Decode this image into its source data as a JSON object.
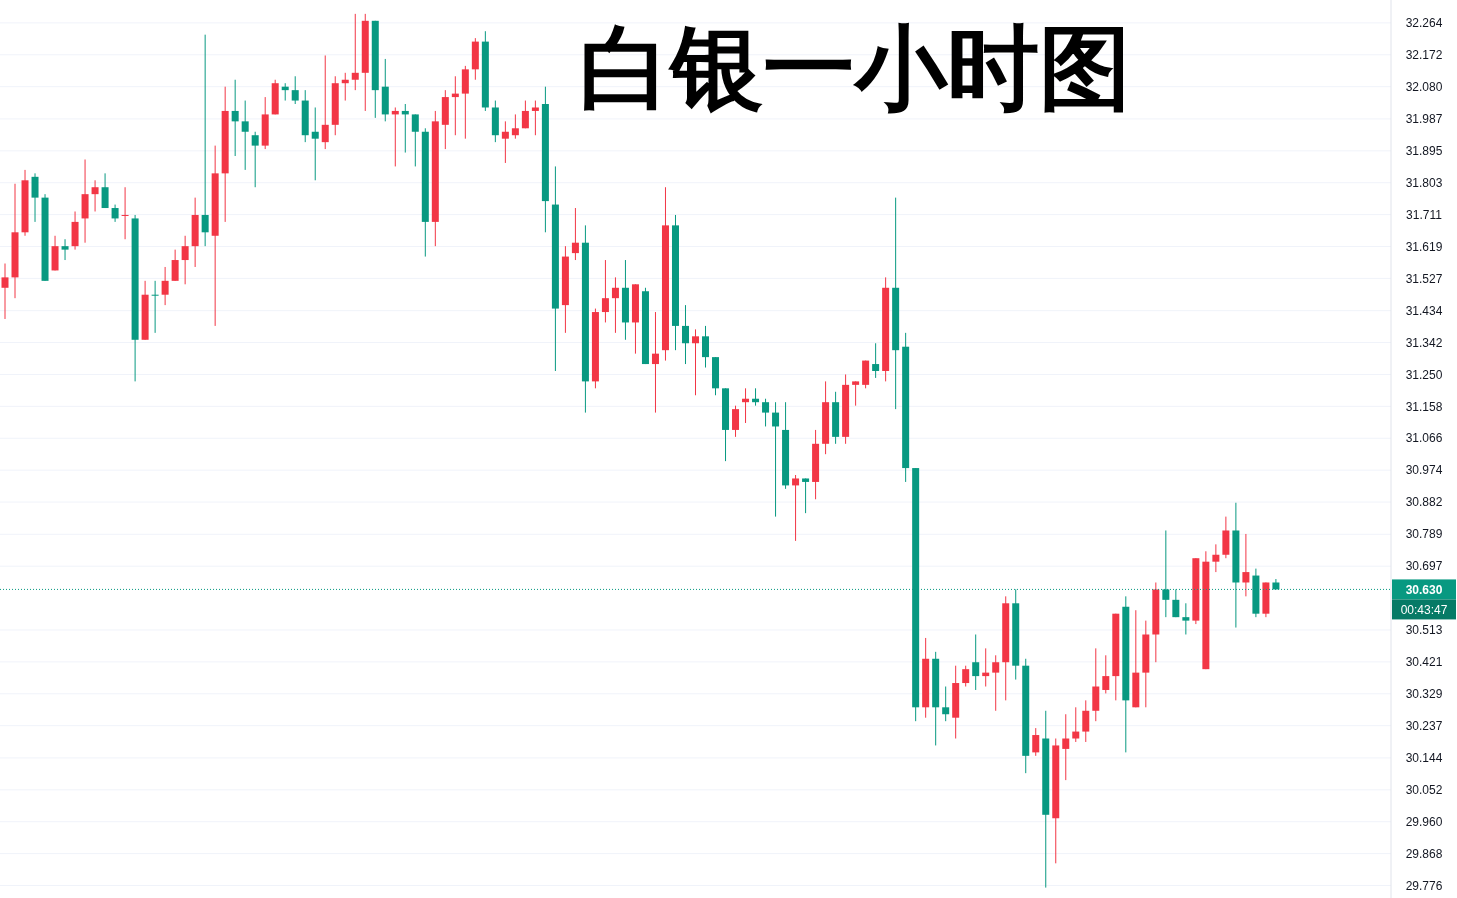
{
  "chart_data": {
    "type": "candlestick",
    "title": "白银一小时图",
    "categories": [
      null,
      null,
      null,
      null,
      null,
      null,
      null,
      null,
      null,
      null,
      null,
      null,
      null,
      null,
      null,
      null,
      null,
      null,
      null,
      null,
      null,
      null,
      null,
      null,
      null,
      null,
      null,
      null,
      null,
      null,
      null,
      null,
      null,
      null,
      null,
      null,
      null,
      null,
      null,
      null,
      null,
      null,
      null,
      null,
      null,
      null,
      null,
      null,
      null,
      null,
      null,
      null,
      null,
      null,
      null,
      null,
      null,
      null,
      null,
      null,
      null,
      null,
      null,
      null,
      null,
      null,
      null,
      null,
      null,
      null,
      null,
      null,
      null,
      null,
      null,
      null,
      null,
      null,
      null,
      null,
      null,
      null,
      null,
      null,
      null,
      null,
      null,
      null,
      null,
      null,
      null,
      null,
      null,
      null,
      null,
      null,
      null,
      null,
      null,
      null,
      null,
      null,
      null,
      null,
      null,
      null,
      null,
      null,
      null,
      null,
      null,
      null,
      null,
      null,
      null,
      null,
      null,
      null,
      null,
      null,
      null,
      null,
      null,
      null,
      null,
      null,
      null,
      null,
      null,
      null,
      null,
      null,
      null,
      null,
      null,
      null,
      null,
      null,
      null
    ],
    "ohlc": [
      [
        31.5,
        31.57,
        31.41,
        31.53
      ],
      [
        31.53,
        31.8,
        31.47,
        31.66
      ],
      [
        31.66,
        31.84,
        31.65,
        31.81
      ],
      [
        31.82,
        31.83,
        31.69,
        31.76
      ],
      [
        31.76,
        31.77,
        31.52,
        31.52
      ],
      [
        31.55,
        31.65,
        31.55,
        31.62
      ],
      [
        31.62,
        31.64,
        31.58,
        31.61
      ],
      [
        31.62,
        31.72,
        31.61,
        31.69
      ],
      [
        31.7,
        31.87,
        31.63,
        31.77
      ],
      [
        31.77,
        31.81,
        31.72,
        31.79
      ],
      [
        31.79,
        31.83,
        31.73,
        31.73
      ],
      [
        31.73,
        31.74,
        31.69,
        31.7
      ],
      [
        31.71,
        31.79,
        31.64,
        31.71
      ],
      [
        31.7,
        31.71,
        31.23,
        31.35
      ],
      [
        31.35,
        31.52,
        31.35,
        31.48
      ],
      [
        31.48,
        31.52,
        31.37,
        31.48
      ],
      [
        31.48,
        31.56,
        31.45,
        31.52
      ],
      [
        31.52,
        31.61,
        31.52,
        31.58
      ],
      [
        31.58,
        31.65,
        31.51,
        31.62
      ],
      [
        31.62,
        31.76,
        31.56,
        31.71
      ],
      [
        31.71,
        32.23,
        31.62,
        31.66
      ],
      [
        31.65,
        31.91,
        31.39,
        31.83
      ],
      [
        31.83,
        32.08,
        31.69,
        32.01
      ],
      [
        32.01,
        32.1,
        31.88,
        31.98
      ],
      [
        31.98,
        32.04,
        31.84,
        31.95
      ],
      [
        31.94,
        31.95,
        31.79,
        31.91
      ],
      [
        31.91,
        32.05,
        31.9,
        32.0
      ],
      [
        32.0,
        32.1,
        32.0,
        32.09
      ],
      [
        32.08,
        32.09,
        32.04,
        32.07
      ],
      [
        32.07,
        32.11,
        32.03,
        32.04
      ],
      [
        32.04,
        32.07,
        31.92,
        31.94
      ],
      [
        31.95,
        32.02,
        31.81,
        31.93
      ],
      [
        31.92,
        32.17,
        31.9,
        31.97
      ],
      [
        31.97,
        32.11,
        31.94,
        32.09
      ],
      [
        32.09,
        32.12,
        32.04,
        32.1
      ],
      [
        32.1,
        32.29,
        32.07,
        32.12
      ],
      [
        32.12,
        32.29,
        32.01,
        32.27
      ],
      [
        32.27,
        32.27,
        31.99,
        32.07
      ],
      [
        32.08,
        32.16,
        31.98,
        32.0
      ],
      [
        32.0,
        32.02,
        31.85,
        32.01
      ],
      [
        32.01,
        32.03,
        31.89,
        32.0
      ],
      [
        32.0,
        32.0,
        31.85,
        31.95
      ],
      [
        31.95,
        31.96,
        31.59,
        31.69
      ],
      [
        31.69,
        32.01,
        31.62,
        31.98
      ],
      [
        31.97,
        32.07,
        31.9,
        32.05
      ],
      [
        32.05,
        32.11,
        31.94,
        32.06
      ],
      [
        32.06,
        32.14,
        31.93,
        32.13
      ],
      [
        32.13,
        32.22,
        32.1,
        32.21
      ],
      [
        32.21,
        32.24,
        32.01,
        32.02
      ],
      [
        32.02,
        32.04,
        31.92,
        31.94
      ],
      [
        31.93,
        31.98,
        31.86,
        31.95
      ],
      [
        31.94,
        32.0,
        31.93,
        31.96
      ],
      [
        31.96,
        32.04,
        31.96,
        32.01
      ],
      [
        32.01,
        32.04,
        31.94,
        32.02
      ],
      [
        32.03,
        32.08,
        31.66,
        31.75
      ],
      [
        31.74,
        31.85,
        31.26,
        31.44
      ],
      [
        31.45,
        31.62,
        31.37,
        31.59
      ],
      [
        31.6,
        31.73,
        31.58,
        31.63
      ],
      [
        31.63,
        31.68,
        31.14,
        31.23
      ],
      [
        31.23,
        31.44,
        31.21,
        31.43
      ],
      [
        31.43,
        31.58,
        31.4,
        31.47
      ],
      [
        31.47,
        31.53,
        31.37,
        31.5
      ],
      [
        31.5,
        31.58,
        31.35,
        31.4
      ],
      [
        31.4,
        31.51,
        31.31,
        31.51
      ],
      [
        31.49,
        31.5,
        31.28,
        31.28
      ],
      [
        31.28,
        31.43,
        31.14,
        31.31
      ],
      [
        31.32,
        31.79,
        31.29,
        31.68
      ],
      [
        31.68,
        31.71,
        31.32,
        31.39
      ],
      [
        31.39,
        31.45,
        31.28,
        31.34
      ],
      [
        31.34,
        31.38,
        31.19,
        31.36
      ],
      [
        31.36,
        31.39,
        31.27,
        31.3
      ],
      [
        31.3,
        31.3,
        31.19,
        31.21
      ],
      [
        31.21,
        31.21,
        31.0,
        31.09
      ],
      [
        31.09,
        31.16,
        31.07,
        31.15
      ],
      [
        31.17,
        31.21,
        31.11,
        31.18
      ],
      [
        31.18,
        31.21,
        31.16,
        31.17
      ],
      [
        31.17,
        31.18,
        31.1,
        31.14
      ],
      [
        31.14,
        31.17,
        30.84,
        31.1
      ],
      [
        31.09,
        31.17,
        30.92,
        30.93
      ],
      [
        30.93,
        30.96,
        30.77,
        30.95
      ],
      [
        30.95,
        30.95,
        30.85,
        30.94
      ],
      [
        30.94,
        31.09,
        30.89,
        31.05
      ],
      [
        31.05,
        31.23,
        31.02,
        31.17
      ],
      [
        31.17,
        31.2,
        31.05,
        31.07
      ],
      [
        31.07,
        31.25,
        31.05,
        31.22
      ],
      [
        31.22,
        31.23,
        31.16,
        31.23
      ],
      [
        31.22,
        31.29,
        31.21,
        31.29
      ],
      [
        31.28,
        31.34,
        31.24,
        31.26
      ],
      [
        31.26,
        31.53,
        31.23,
        31.5
      ],
      [
        31.5,
        31.76,
        31.15,
        31.32
      ],
      [
        31.33,
        31.37,
        30.94,
        30.98
      ],
      [
        30.98,
        30.98,
        30.25,
        30.29
      ],
      [
        30.29,
        30.49,
        30.26,
        30.43
      ],
      [
        30.43,
        30.45,
        30.18,
        30.29
      ],
      [
        30.29,
        30.35,
        30.25,
        30.27
      ],
      [
        30.26,
        30.41,
        30.2,
        30.36
      ],
      [
        30.36,
        30.41,
        30.35,
        30.4
      ],
      [
        30.42,
        30.5,
        30.34,
        30.38
      ],
      [
        30.38,
        30.46,
        30.35,
        30.39
      ],
      [
        30.39,
        30.44,
        30.28,
        30.42
      ],
      [
        30.42,
        30.61,
        30.31,
        30.59
      ],
      [
        30.59,
        30.63,
        30.37,
        30.41
      ],
      [
        30.41,
        30.43,
        30.1,
        30.15
      ],
      [
        30.16,
        30.23,
        30.15,
        30.21
      ],
      [
        30.2,
        30.28,
        29.77,
        29.98
      ],
      [
        29.97,
        30.2,
        29.84,
        30.18
      ],
      [
        30.17,
        30.27,
        30.08,
        30.2
      ],
      [
        30.2,
        30.29,
        30.19,
        30.22
      ],
      [
        30.22,
        30.31,
        30.19,
        30.28
      ],
      [
        30.28,
        30.46,
        30.25,
        30.35
      ],
      [
        30.34,
        30.44,
        30.33,
        30.38
      ],
      [
        30.38,
        30.56,
        30.31,
        30.56
      ],
      [
        30.58,
        30.61,
        30.16,
        30.31
      ],
      [
        30.29,
        30.57,
        30.29,
        30.39
      ],
      [
        30.39,
        30.54,
        30.29,
        30.5
      ],
      [
        30.5,
        30.65,
        30.42,
        30.63
      ],
      [
        30.63,
        30.8,
        30.55,
        30.6
      ],
      [
        30.6,
        30.63,
        30.55,
        30.55
      ],
      [
        30.55,
        30.59,
        30.5,
        30.54
      ],
      [
        30.54,
        30.72,
        30.53,
        30.72
      ],
      [
        30.4,
        30.74,
        30.4,
        30.71
      ],
      [
        30.71,
        30.76,
        30.68,
        30.73
      ],
      [
        30.73,
        30.84,
        30.72,
        30.8
      ],
      [
        30.8,
        30.88,
        30.52,
        30.65
      ],
      [
        30.65,
        30.79,
        30.61,
        30.68
      ],
      [
        30.67,
        30.69,
        30.55,
        30.56
      ],
      [
        30.56,
        30.65,
        30.55,
        30.65
      ],
      [
        30.65,
        30.66,
        30.63,
        30.63
      ],
      null,
      null,
      null,
      null,
      null,
      null,
      null,
      null,
      null,
      null,
      null
    ],
    "colors": [
      "#f23645",
      "#f23645",
      "#f23645",
      "#089981",
      "#089981",
      "#f23645",
      "#089981",
      "#f23645",
      "#f23645",
      "#f23645",
      "#089981",
      "#089981",
      "#f23645",
      "#089981",
      "#f23645",
      "#089981",
      "#f23645",
      "#f23645",
      "#f23645",
      "#f23645",
      "#089981",
      "#f23645",
      "#f23645",
      "#089981",
      "#089981",
      "#089981",
      "#f23645",
      "#f23645",
      "#089981",
      "#089981",
      "#089981",
      "#089981",
      "#f23645",
      "#f23645",
      "#f23645",
      "#f23645",
      "#f23645",
      "#089981",
      "#089981",
      "#f23645",
      "#089981",
      "#089981",
      "#089981",
      "#f23645",
      "#f23645",
      "#f23645",
      "#f23645",
      "#f23645",
      "#089981",
      "#089981",
      "#f23645",
      "#f23645",
      "#f23645",
      "#f23645",
      "#089981",
      "#089981",
      "#f23645",
      "#f23645",
      "#089981",
      "#f23645",
      "#f23645",
      "#f23645",
      "#089981",
      "#f23645",
      "#089981",
      "#f23645",
      "#f23645",
      "#089981",
      "#089981",
      "#f23645",
      "#089981",
      "#089981",
      "#089981",
      "#f23645",
      "#f23645",
      "#089981",
      "#089981",
      "#089981",
      "#089981",
      "#f23645",
      "#089981",
      "#f23645",
      "#f23645",
      "#089981",
      "#f23645",
      "#f23645",
      "#f23645",
      "#089981",
      "#f23645",
      "#089981",
      "#089981",
      "#089981",
      "#f23645",
      "#089981",
      "#089981",
      "#f23645",
      "#f23645",
      "#089981",
      "#f23645",
      "#f23645",
      "#f23645",
      "#089981",
      "#089981",
      "#f23645",
      "#089981",
      "#f23645",
      "#f23645",
      "#f23645",
      "#f23645",
      "#f23645",
      "#f23645",
      "#f23645",
      "#089981",
      "#f23645",
      "#f23645",
      "#f23645",
      "#089981",
      "#089981",
      "#089981",
      "#f23645",
      "#f23645",
      "#f23645",
      "#f23645",
      "#089981",
      "#f23645",
      "#089981",
      "#f23645",
      "#089981",
      null,
      null,
      null,
      null,
      null,
      null,
      null,
      null,
      null,
      null,
      null
    ],
    "ylim": [
      29.74,
      32.33
    ],
    "yticks": [
      32.264,
      32.172,
      {
        "value": 32.08,
        "label": "32.080"
      },
      31.987,
      31.895,
      31.803,
      31.711,
      31.619,
      31.527,
      31.434,
      31.342,
      {
        "value": 31.25,
        "label": "31.250"
      },
      31.158,
      31.066,
      30.974,
      30.882,
      30.789,
      30.697,
      30.513,
      30.421,
      30.329,
      30.237,
      30.144,
      30.052,
      {
        "value": 29.96,
        "label": "29.960"
      },
      29.868,
      29.776
    ],
    "grid": "y",
    "ref_lines": [
      {
        "axis": "y",
        "value": 30.63,
        "label": "30.630",
        "color": "#089981",
        "line_style": "dotted"
      }
    ],
    "annotations": [
      "00:43:47"
    ]
  }
}
